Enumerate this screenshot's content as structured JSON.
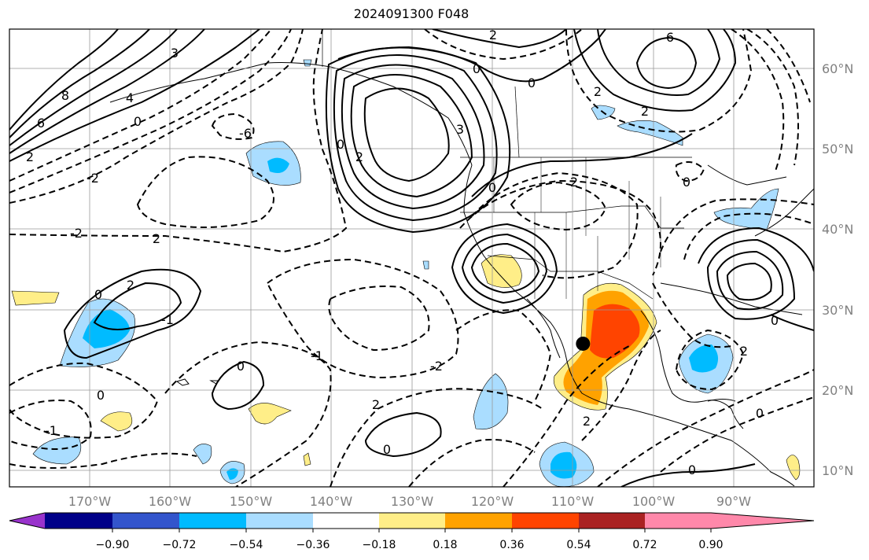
{
  "title": "2024091300 F048",
  "map": {
    "lon_labels": [
      "170°W",
      "160°W",
      "150°W",
      "140°W",
      "130°W",
      "120°W",
      "110°W",
      "100°W",
      "90°W"
    ],
    "lat_labels": [
      "60°N",
      "50°N",
      "40°N",
      "30°N",
      "20°N",
      "10°N"
    ],
    "contour_labels": [
      "8",
      "6",
      "4",
      "2",
      "0",
      "-6",
      "-2",
      "2",
      "-2",
      "0",
      "2",
      "-1",
      "0",
      "-1",
      "-2",
      "0",
      "2",
      "0",
      "3",
      "0",
      "2",
      "6",
      "2",
      "2",
      "0",
      "2",
      "3",
      "0",
      "2",
      "0",
      "0",
      "-1",
      "2",
      "0",
      "0",
      "0",
      "2"
    ],
    "points": [
      {
        "lon": -108.7,
        "lat": 25.8,
        "kind": "filled-black-circle"
      }
    ]
  },
  "colorbar": {
    "tick_labels": [
      "−0.90",
      "−0.72",
      "−0.54",
      "−0.36",
      "−0.18",
      "0.18",
      "0.36",
      "0.54",
      "0.72",
      "0.90"
    ],
    "colors": [
      "#9933cc",
      "#000088",
      "#3355cc",
      "#00bbff",
      "#aaddff",
      "#ffffff",
      "#ffee88",
      "#ffa200",
      "#ff4400",
      "#aa2222",
      "#ff88aa"
    ]
  }
}
